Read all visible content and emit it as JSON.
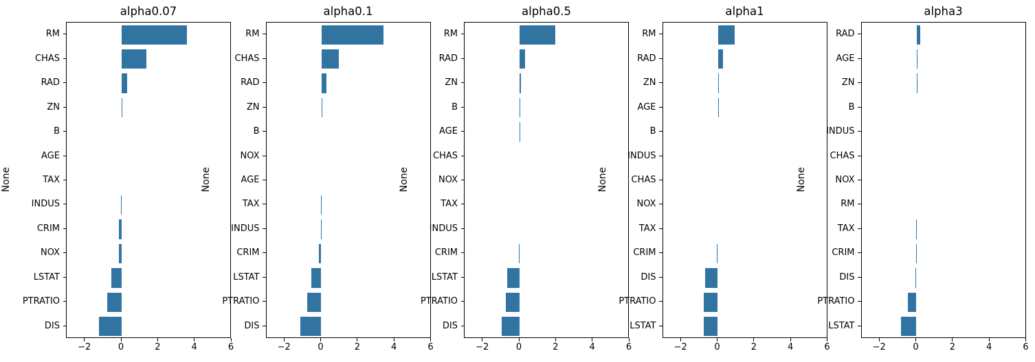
{
  "figure": {
    "background": "#ffffff",
    "bar_color": "#3274a1",
    "axis_color": "#000000",
    "y_axis_label": "None"
  },
  "chart_data": [
    {
      "type": "bar",
      "orientation": "horizontal",
      "title": "alpha0.07",
      "ylabel": "None",
      "xlabel": "",
      "xlim": [
        -3,
        6
      ],
      "x_ticks": [
        -2,
        0,
        2,
        4,
        6
      ],
      "x_tick_labels": [
        "−2",
        "0",
        "2",
        "4",
        "6"
      ],
      "grid": false,
      "legend": null,
      "categories": [
        "RM",
        "CHAS",
        "RAD",
        "ZN",
        "B",
        "AGE",
        "TAX",
        "INDUS",
        "CRIM",
        "NOX",
        "LSTAT",
        "PTRATIO",
        "DIS"
      ],
      "values": [
        3.55,
        1.34,
        0.29,
        0.05,
        0.01,
        0.0,
        -0.01,
        -0.05,
        -0.14,
        -0.16,
        -0.56,
        -0.8,
        -1.22
      ]
    },
    {
      "type": "bar",
      "orientation": "horizontal",
      "title": "alpha0.1",
      "ylabel": "None",
      "xlabel": "",
      "xlim": [
        -3,
        6
      ],
      "x_ticks": [
        -2,
        0,
        2,
        4,
        6
      ],
      "x_tick_labels": [
        "−2",
        "0",
        "2",
        "4",
        "6"
      ],
      "grid": false,
      "legend": null,
      "categories": [
        "RM",
        "CHAS",
        "RAD",
        "ZN",
        "B",
        "NOX",
        "AGE",
        "TAX",
        "INDUS",
        "CRIM",
        "LSTAT",
        "PTRATIO",
        "DIS"
      ],
      "values": [
        3.4,
        0.97,
        0.27,
        0.05,
        0.01,
        0.0,
        0.0,
        -0.02,
        -0.03,
        -0.13,
        -0.55,
        -0.76,
        -1.16
      ]
    },
    {
      "type": "bar",
      "orientation": "horizontal",
      "title": "alpha0.5",
      "ylabel": "None",
      "xlabel": "",
      "xlim": [
        -3,
        6
      ],
      "x_ticks": [
        -2,
        0,
        2,
        4,
        6
      ],
      "x_tick_labels": [
        "−2",
        "0",
        "2",
        "4",
        "6"
      ],
      "grid": false,
      "legend": null,
      "categories": [
        "RM",
        "RAD",
        "ZN",
        "B",
        "AGE",
        "CHAS",
        "NOX",
        "TAX",
        "INDUS",
        "CRIM",
        "LSTAT",
        "PTRATIO",
        "DIS"
      ],
      "values": [
        1.95,
        0.29,
        0.08,
        0.04,
        0.03,
        0.0,
        0.0,
        0.0,
        -0.01,
        -0.05,
        -0.66,
        -0.76,
        -0.97
      ]
    },
    {
      "type": "bar",
      "orientation": "horizontal",
      "title": "alpha1",
      "ylabel": "None",
      "xlabel": "",
      "xlim": [
        -3,
        6
      ],
      "x_ticks": [
        -2,
        0,
        2,
        4,
        6
      ],
      "x_tick_labels": [
        "−2",
        "0",
        "2",
        "4",
        "6"
      ],
      "grid": false,
      "legend": null,
      "categories": [
        "RM",
        "RAD",
        "ZN",
        "AGE",
        "B",
        "INDUS",
        "CHAS",
        "NOX",
        "TAX",
        "CRIM",
        "DIS",
        "PTRATIO",
        "LSTAT"
      ],
      "values": [
        0.93,
        0.29,
        0.04,
        0.03,
        0.0,
        0.0,
        0.0,
        0.0,
        -0.01,
        -0.06,
        -0.7,
        -0.76,
        -0.77
      ]
    },
    {
      "type": "bar",
      "orientation": "horizontal",
      "title": "alpha3",
      "ylabel": "None",
      "xlabel": "",
      "xlim": [
        -3,
        6
      ],
      "x_ticks": [
        -2,
        0,
        2,
        4,
        6
      ],
      "x_tick_labels": [
        "−2",
        "0",
        "2",
        "4",
        "6"
      ],
      "grid": false,
      "legend": null,
      "categories": [
        "RAD",
        "AGE",
        "ZN",
        "B",
        "INDUS",
        "CHAS",
        "NOX",
        "RM",
        "TAX",
        "CRIM",
        "DIS",
        "PTRATIO",
        "LSTAT"
      ],
      "values": [
        0.2,
        0.03,
        0.03,
        0.0,
        0.0,
        0.0,
        0.0,
        0.0,
        -0.02,
        -0.03,
        -0.04,
        -0.46,
        -0.83
      ]
    }
  ]
}
